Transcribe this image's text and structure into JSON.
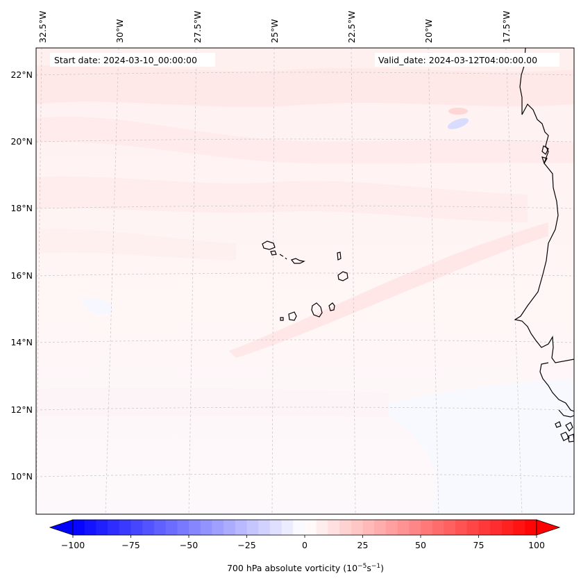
{
  "map": {
    "start_label": "Start date: 2024-03-10_00:00:00",
    "valid_label": "Valid_date: 2024-03-12T04:00:00.00",
    "lon_labels": [
      "32.5°W",
      "30°W",
      "27.5°W",
      "25°W",
      "22.5°W",
      "20°W",
      "17.5°W"
    ],
    "lat_labels": [
      "22°N",
      "20°N",
      "18°N",
      "16°N",
      "14°N",
      "12°N",
      "10°N"
    ]
  },
  "colorbar": {
    "label_prefix": "700 hPa absolute vorticity (10",
    "label_exp1": "−5",
    "label_mid": "s",
    "label_exp2": "−1",
    "label_suffix": ")",
    "min": -100,
    "max": 100,
    "tick_labels": [
      "−100",
      "−75",
      "−50",
      "−25",
      "0",
      "25",
      "50",
      "75",
      "100"
    ],
    "colors": {
      "negative": "#0000ff",
      "zero": "#ffffff",
      "positive": "#ff0000"
    }
  }
}
